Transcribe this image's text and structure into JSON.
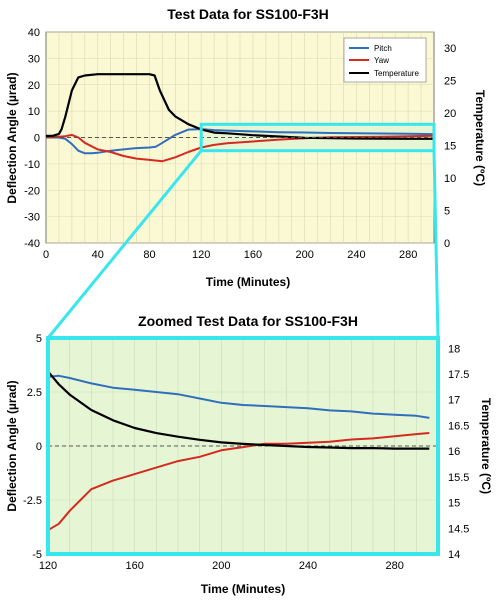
{
  "chart_data": [
    {
      "type": "line",
      "title": "Test Data for SS100-F3H",
      "xlabel": "Time (Minutes)",
      "ylabel": "Deflection Angle (µrad)",
      "y2label": "Temperature (ºC)",
      "xlim": [
        0,
        300
      ],
      "ylim": [
        -40,
        40
      ],
      "y2lim": [
        0,
        32.5
      ],
      "xticks": [
        "0",
        "40",
        "80",
        "120",
        "160",
        "200",
        "240",
        "280"
      ],
      "yticks": [
        "40",
        "30",
        "20",
        "10",
        "0",
        "-10",
        "-20",
        "-30",
        "-40"
      ],
      "y2ticks": [
        "30",
        "25",
        "20",
        "15",
        "10",
        "5",
        "0"
      ],
      "grid": true,
      "legend_position": "top-right",
      "series": [
        {
          "name": "Pitch",
          "color": "#2f6fbe",
          "axis": "left",
          "x": [
            0,
            5,
            10,
            15,
            20,
            25,
            30,
            35,
            40,
            50,
            60,
            70,
            80,
            85,
            90,
            100,
            110,
            120,
            130,
            140,
            160,
            180,
            200,
            220,
            240,
            260,
            280,
            300
          ],
          "y": [
            0,
            0,
            0,
            -0.5,
            -2.5,
            -5,
            -6,
            -6,
            -5.8,
            -5,
            -4.5,
            -4,
            -3.8,
            -3.5,
            -2,
            1,
            3,
            3.2,
            2.8,
            2.6,
            2.3,
            2,
            1.9,
            1.7,
            1.6,
            1.5,
            1.4,
            1.3
          ]
        },
        {
          "name": "Yaw",
          "color": "#d42a20",
          "axis": "left",
          "x": [
            0,
            10,
            15,
            20,
            25,
            30,
            40,
            50,
            60,
            70,
            80,
            90,
            100,
            110,
            120,
            130,
            140,
            160,
            180,
            200,
            220,
            240,
            260,
            280,
            300
          ],
          "y": [
            0,
            0.3,
            0.5,
            1,
            0,
            -2,
            -4.5,
            -5.5,
            -7,
            -8,
            -8.5,
            -9,
            -7.5,
            -5.5,
            -3.8,
            -2.8,
            -2.2,
            -1.5,
            -0.8,
            -0.3,
            0.1,
            0.2,
            0.3,
            0.5,
            0.7
          ]
        },
        {
          "name": "Temperature",
          "color": "#000000",
          "axis": "right",
          "x": [
            0,
            5,
            10,
            12,
            15,
            20,
            25,
            30,
            40,
            50,
            60,
            70,
            80,
            84,
            88,
            95,
            100,
            110,
            120,
            130,
            140,
            160,
            180,
            200,
            240,
            280,
            300
          ],
          "y": [
            16.5,
            16.5,
            16.8,
            17.5,
            19.5,
            23.5,
            25.5,
            25.8,
            26,
            26,
            26,
            26,
            26,
            25.8,
            23.5,
            20.5,
            19.5,
            18.3,
            17.5,
            17,
            16.9,
            16.6,
            16.4,
            16.2,
            16.1,
            16.05,
            16.05
          ]
        }
      ],
      "zoom_window": {
        "x": [
          120,
          300
        ],
        "y": [
          -5,
          5
        ]
      }
    },
    {
      "type": "line",
      "title": "Zoomed Test Data for SS100-F3H",
      "xlabel": "Time (Minutes)",
      "ylabel": "Deflection Angle (µrad)",
      "y2label": "Temperature (ºC)",
      "xlim": [
        120,
        300
      ],
      "ylim": [
        -5,
        5
      ],
      "y2lim": [
        14,
        18.2
      ],
      "xticks": [
        "120",
        "160",
        "200",
        "240",
        "280"
      ],
      "yticks": [
        "5",
        "2.5",
        "0",
        "-2.5",
        "-5"
      ],
      "y2ticks": [
        "18",
        "17.5",
        "17",
        "16.5",
        "16",
        "15.5",
        "15",
        "14.5",
        "14"
      ],
      "grid": true,
      "series": [
        {
          "name": "Pitch",
          "color": "#2f6fbe",
          "axis": "left",
          "x": [
            120,
            125,
            130,
            140,
            150,
            160,
            170,
            180,
            190,
            200,
            210,
            220,
            230,
            240,
            250,
            260,
            270,
            280,
            290,
            296
          ],
          "y": [
            3.2,
            3.25,
            3.15,
            2.9,
            2.7,
            2.6,
            2.5,
            2.4,
            2.2,
            2.0,
            1.9,
            1.85,
            1.8,
            1.75,
            1.65,
            1.6,
            1.5,
            1.45,
            1.4,
            1.3
          ]
        },
        {
          "name": "Yaw",
          "color": "#d42a20",
          "axis": "left",
          "x": [
            120,
            125,
            130,
            135,
            140,
            150,
            160,
            170,
            180,
            190,
            200,
            210,
            220,
            230,
            240,
            250,
            260,
            270,
            280,
            290,
            296
          ],
          "y": [
            -3.9,
            -3.6,
            -3.0,
            -2.5,
            -2.0,
            -1.6,
            -1.3,
            -1.0,
            -0.7,
            -0.5,
            -0.2,
            -0.05,
            0.1,
            0.1,
            0.15,
            0.2,
            0.3,
            0.35,
            0.45,
            0.55,
            0.6
          ]
        },
        {
          "name": "Temperature",
          "color": "#000000",
          "axis": "right",
          "x": [
            120,
            125,
            130,
            140,
            150,
            160,
            170,
            180,
            190,
            200,
            210,
            220,
            230,
            240,
            250,
            260,
            270,
            280,
            290,
            296
          ],
          "y": [
            17.55,
            17.3,
            17.1,
            16.8,
            16.6,
            16.45,
            16.35,
            16.28,
            16.22,
            16.17,
            16.14,
            16.12,
            16.1,
            16.08,
            16.07,
            16.06,
            16.06,
            16.05,
            16.05,
            16.05
          ]
        }
      ]
    }
  ]
}
